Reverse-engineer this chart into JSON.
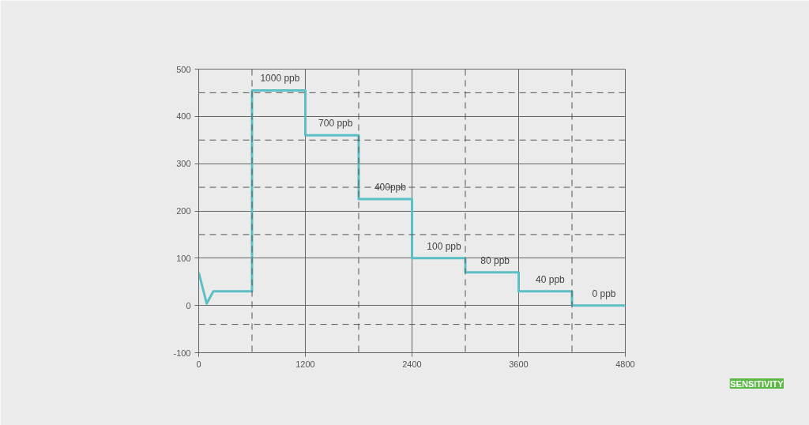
{
  "chart_data": {
    "type": "line",
    "x": [
      0,
      90,
      165,
      600,
      600,
      1200,
      1200,
      1800,
      1800,
      2400,
      2400,
      3000,
      3000,
      3600,
      3600,
      4200,
      4200,
      4800
    ],
    "series": [
      {
        "color": "#5bbfc6",
        "values": [
          70,
          4,
          30,
          30,
          455,
          455,
          360,
          360,
          225,
          225,
          100,
          100,
          70,
          70,
          30,
          30,
          0,
          0
        ]
      }
    ],
    "xlim": [
      0,
      4800
    ],
    "xticks": [
      0,
      1200,
      2400,
      3600,
      4800
    ],
    "ylim": [
      -100,
      500
    ],
    "yticks": [
      -100,
      0,
      100,
      200,
      300,
      400,
      500
    ],
    "grid": true,
    "marker": "none",
    "line_style": "solid",
    "ref_lines": [
      {
        "axis": "x",
        "value": 600,
        "color": "#555555",
        "line_style": "dashed"
      },
      {
        "axis": "x",
        "value": 1800,
        "color": "#555555",
        "line_style": "dashed"
      },
      {
        "axis": "x",
        "value": 3000,
        "color": "#555555",
        "line_style": "dashed"
      },
      {
        "axis": "x",
        "value": 4200,
        "color": "#555555",
        "line_style": "dashed"
      },
      {
        "axis": "y",
        "value": 450,
        "color": "#555555",
        "line_style": "dashed"
      },
      {
        "axis": "y",
        "value": 350,
        "color": "#555555",
        "line_style": "dashed"
      },
      {
        "axis": "y",
        "value": 250,
        "color": "#555555",
        "line_style": "dashed"
      },
      {
        "axis": "y",
        "value": 150,
        "color": "#555555",
        "line_style": "dashed"
      },
      {
        "axis": "y",
        "value": -40,
        "color": "#555555",
        "line_style": "dashed"
      }
    ],
    "annotations": [
      {
        "text": "1000 ppb",
        "x": 915,
        "y": 455
      },
      {
        "text": "700 ppb",
        "x": 1540,
        "y": 360
      },
      {
        "text": "400ppb",
        "x": 2155,
        "y": 225
      },
      {
        "text": "100 ppb",
        "x": 2760,
        "y": 100
      },
      {
        "text": "80 ppb",
        "x": 3335,
        "y": 70
      },
      {
        "text": "40 ppb",
        "x": 3955,
        "y": 30
      },
      {
        "text": "0 ppb",
        "x": 4560,
        "y": 0
      },
      "SENSITIVITY"
    ]
  }
}
